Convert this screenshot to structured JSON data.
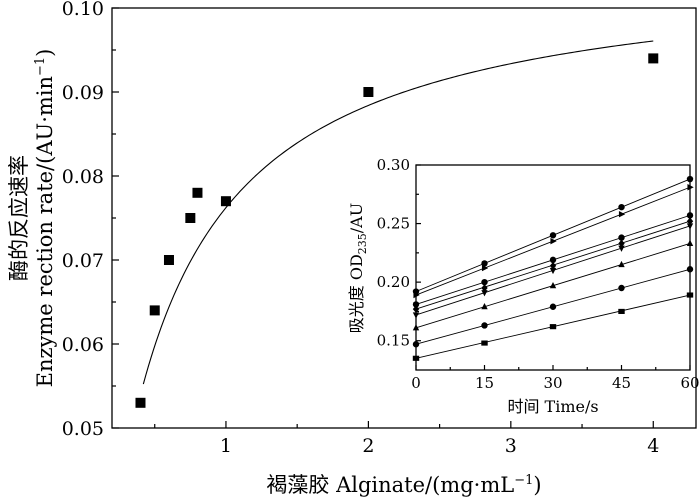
{
  "chart_data": [
    {
      "type": "scatter",
      "xlabel": "褐藻胶 Alginate/(mg·mL",
      "xlabel_sup": "−1",
      "xlabel_end": ")",
      "ylabel_cn": "酶的反应速率",
      "ylabel_en": "Enzyme rection rate/(AU·min",
      "ylabel_sup": "−1",
      "ylabel_end": ")",
      "xlim": [
        0.2,
        4.3
      ],
      "ylim": [
        0.05,
        0.1
      ],
      "xticks": [
        1,
        2,
        3,
        4
      ],
      "yticks": [
        0.05,
        0.06,
        0.07,
        0.08,
        0.09,
        0.1
      ],
      "xtick_labels": [
        "1",
        "2",
        "3",
        "4"
      ],
      "ytick_labels": [
        "0.05",
        "0.06",
        "0.07",
        "0.08",
        "0.09",
        "0.10"
      ],
      "points": [
        {
          "x": 0.4,
          "y": 0.053
        },
        {
          "x": 0.5,
          "y": 0.064
        },
        {
          "x": 0.6,
          "y": 0.07
        },
        {
          "x": 0.75,
          "y": 0.075
        },
        {
          "x": 0.8,
          "y": 0.078
        },
        {
          "x": 1.0,
          "y": 0.077
        },
        {
          "x": 2.0,
          "y": 0.09
        },
        {
          "x": 4.0,
          "y": 0.094
        }
      ],
      "fit": {
        "model": "michaelis-menten",
        "vmax": 0.1052,
        "km": 0.38,
        "x_range": [
          0.42,
          4.0
        ]
      }
    },
    {
      "type": "line",
      "inset": true,
      "xlabel": "时间 Time/s",
      "ylabel_pre": "吸光度 OD",
      "ylabel_sub": "235",
      "ylabel_post": "/AU",
      "xlim": [
        0,
        60
      ],
      "ylim": [
        0.125,
        0.3
      ],
      "xticks": [
        0,
        15,
        30,
        45,
        60
      ],
      "yticks": [
        0.15,
        0.2,
        0.25,
        0.3
      ],
      "xtick_labels": [
        "0",
        "15",
        "30",
        "45",
        "60"
      ],
      "ytick_labels": [
        "0.15",
        "0.20",
        "0.25",
        "0.30"
      ],
      "x": [
        0,
        15,
        30,
        45,
        60
      ],
      "series": [
        {
          "marker": "circle",
          "values": [
            0.192,
            0.216,
            0.24,
            0.264,
            0.288
          ]
        },
        {
          "marker": "triangle-right",
          "values": [
            0.189,
            0.212,
            0.235,
            0.258,
            0.281
          ]
        },
        {
          "marker": "circle",
          "values": [
            0.181,
            0.2,
            0.219,
            0.238,
            0.257
          ]
        },
        {
          "marker": "diamond",
          "values": [
            0.177,
            0.195,
            0.214,
            0.233,
            0.252
          ]
        },
        {
          "marker": "triangle-down",
          "values": [
            0.172,
            0.191,
            0.21,
            0.229,
            0.248
          ]
        },
        {
          "marker": "triangle-up",
          "values": [
            0.161,
            0.179,
            0.197,
            0.215,
            0.233
          ]
        },
        {
          "marker": "circle",
          "values": [
            0.147,
            0.163,
            0.179,
            0.195,
            0.211
          ]
        },
        {
          "marker": "square",
          "values": [
            0.135,
            0.148,
            0.162,
            0.175,
            0.189
          ]
        }
      ]
    }
  ]
}
